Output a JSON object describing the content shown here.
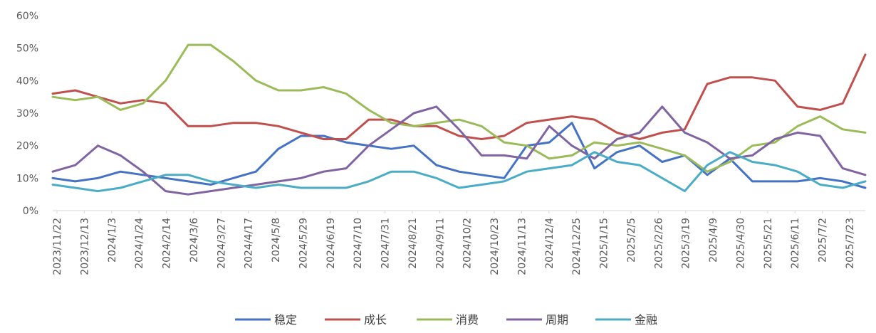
{
  "chart_data": {
    "type": "line",
    "x_tick_labels": [
      "2023/11/22",
      "2023/12/13",
      "2024/1/3",
      "2024/1/24",
      "2024/2/14",
      "2024/3/6",
      "2024/3/27",
      "2024/4/17",
      "2024/5/8",
      "2024/5/29",
      "2024/6/19",
      "2024/7/10",
      "2024/7/31",
      "2024/8/21",
      "2024/9/11",
      "2024/10/2",
      "2024/10/23",
      "2024/11/13",
      "2024/12/4",
      "2024/12/25",
      "2025/1/15",
      "2025/2/5",
      "2025/2/26",
      "2025/3/19",
      "2025/4/9",
      "2025/4/30",
      "2025/5/21",
      "2025/6/11",
      "2025/7/2",
      "2025/7/23"
    ],
    "y_tick_labels": [
      "0%",
      "10%",
      "20%",
      "30%",
      "40%",
      "50%",
      "60%"
    ],
    "ylim": [
      0,
      60
    ],
    "legend_position": "bottom",
    "grid": false,
    "series": [
      {
        "name": "稳定",
        "color": "#4472C4",
        "values": [
          10,
          9,
          10,
          12,
          11,
          10,
          9,
          8,
          10,
          12,
          19,
          23,
          23,
          21,
          20,
          19,
          20,
          14,
          12,
          11,
          10,
          20,
          21,
          27,
          13,
          18,
          20,
          15,
          17,
          11,
          16,
          9,
          9,
          9,
          10,
          9,
          7
        ]
      },
      {
        "name": "成长",
        "color": "#C0504D",
        "values": [
          36,
          37,
          35,
          33,
          34,
          33,
          26,
          26,
          27,
          27,
          26,
          24,
          22,
          22,
          28,
          28,
          26,
          26,
          23,
          22,
          23,
          27,
          28,
          29,
          28,
          24,
          22,
          24,
          25,
          39,
          41,
          41,
          40,
          32,
          31,
          33,
          48
        ]
      },
      {
        "name": "消费",
        "color": "#9BBB59",
        "values": [
          35,
          34,
          35,
          31,
          33,
          40,
          51,
          51,
          46,
          40,
          37,
          37,
          38,
          36,
          31,
          27,
          26,
          27,
          28,
          26,
          21,
          20,
          16,
          17,
          21,
          20,
          21,
          19,
          17,
          12,
          15,
          20,
          21,
          26,
          29,
          25,
          24
        ]
      },
      {
        "name": "周期",
        "color": "#8064A2",
        "values": [
          12,
          14,
          20,
          17,
          12,
          6,
          5,
          6,
          7,
          8,
          9,
          10,
          12,
          13,
          20,
          25,
          30,
          32,
          25,
          17,
          17,
          16,
          26,
          20,
          16,
          22,
          24,
          32,
          24,
          21,
          16,
          17,
          22,
          24,
          23,
          13,
          11
        ]
      },
      {
        "name": "金融",
        "color": "#4BACC6",
        "values": [
          8,
          7,
          6,
          7,
          9,
          11,
          11,
          9,
          8,
          7,
          8,
          7,
          7,
          7,
          9,
          12,
          12,
          10,
          7,
          8,
          9,
          12,
          13,
          14,
          18,
          15,
          14,
          10,
          6,
          14,
          18,
          15,
          14,
          12,
          8,
          7,
          9
        ]
      }
    ]
  }
}
